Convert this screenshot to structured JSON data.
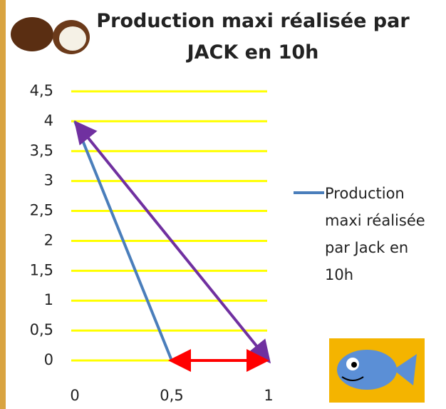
{
  "chart_data": {
    "type": "line",
    "title": "Production maxi réalisée par JACK en 10h",
    "x": [
      0,
      0.5
    ],
    "series": [
      {
        "name": "Production maxi réalisée par Jack en 10h",
        "color": "#4a7ebb",
        "values": [
          4,
          0
        ]
      }
    ],
    "xlim": [
      0,
      1
    ],
    "xticks": [
      0,
      {
        "value": 0.5,
        "label": "0,5"
      },
      1
    ],
    "ylim": [
      0,
      4.5
    ],
    "yticks": [
      0,
      {
        "value": 0.5,
        "label": "0,5"
      },
      1,
      {
        "value": 1.5,
        "label": "1,5"
      },
      2,
      {
        "value": 2.5,
        "label": "2,5"
      },
      3,
      {
        "value": 3.5,
        "label": "3,5"
      },
      4,
      {
        "value": 4.5,
        "label": "4,5"
      }
    ],
    "grid": true,
    "grid_color": "#ffff00",
    "legend": "right"
  }
}
